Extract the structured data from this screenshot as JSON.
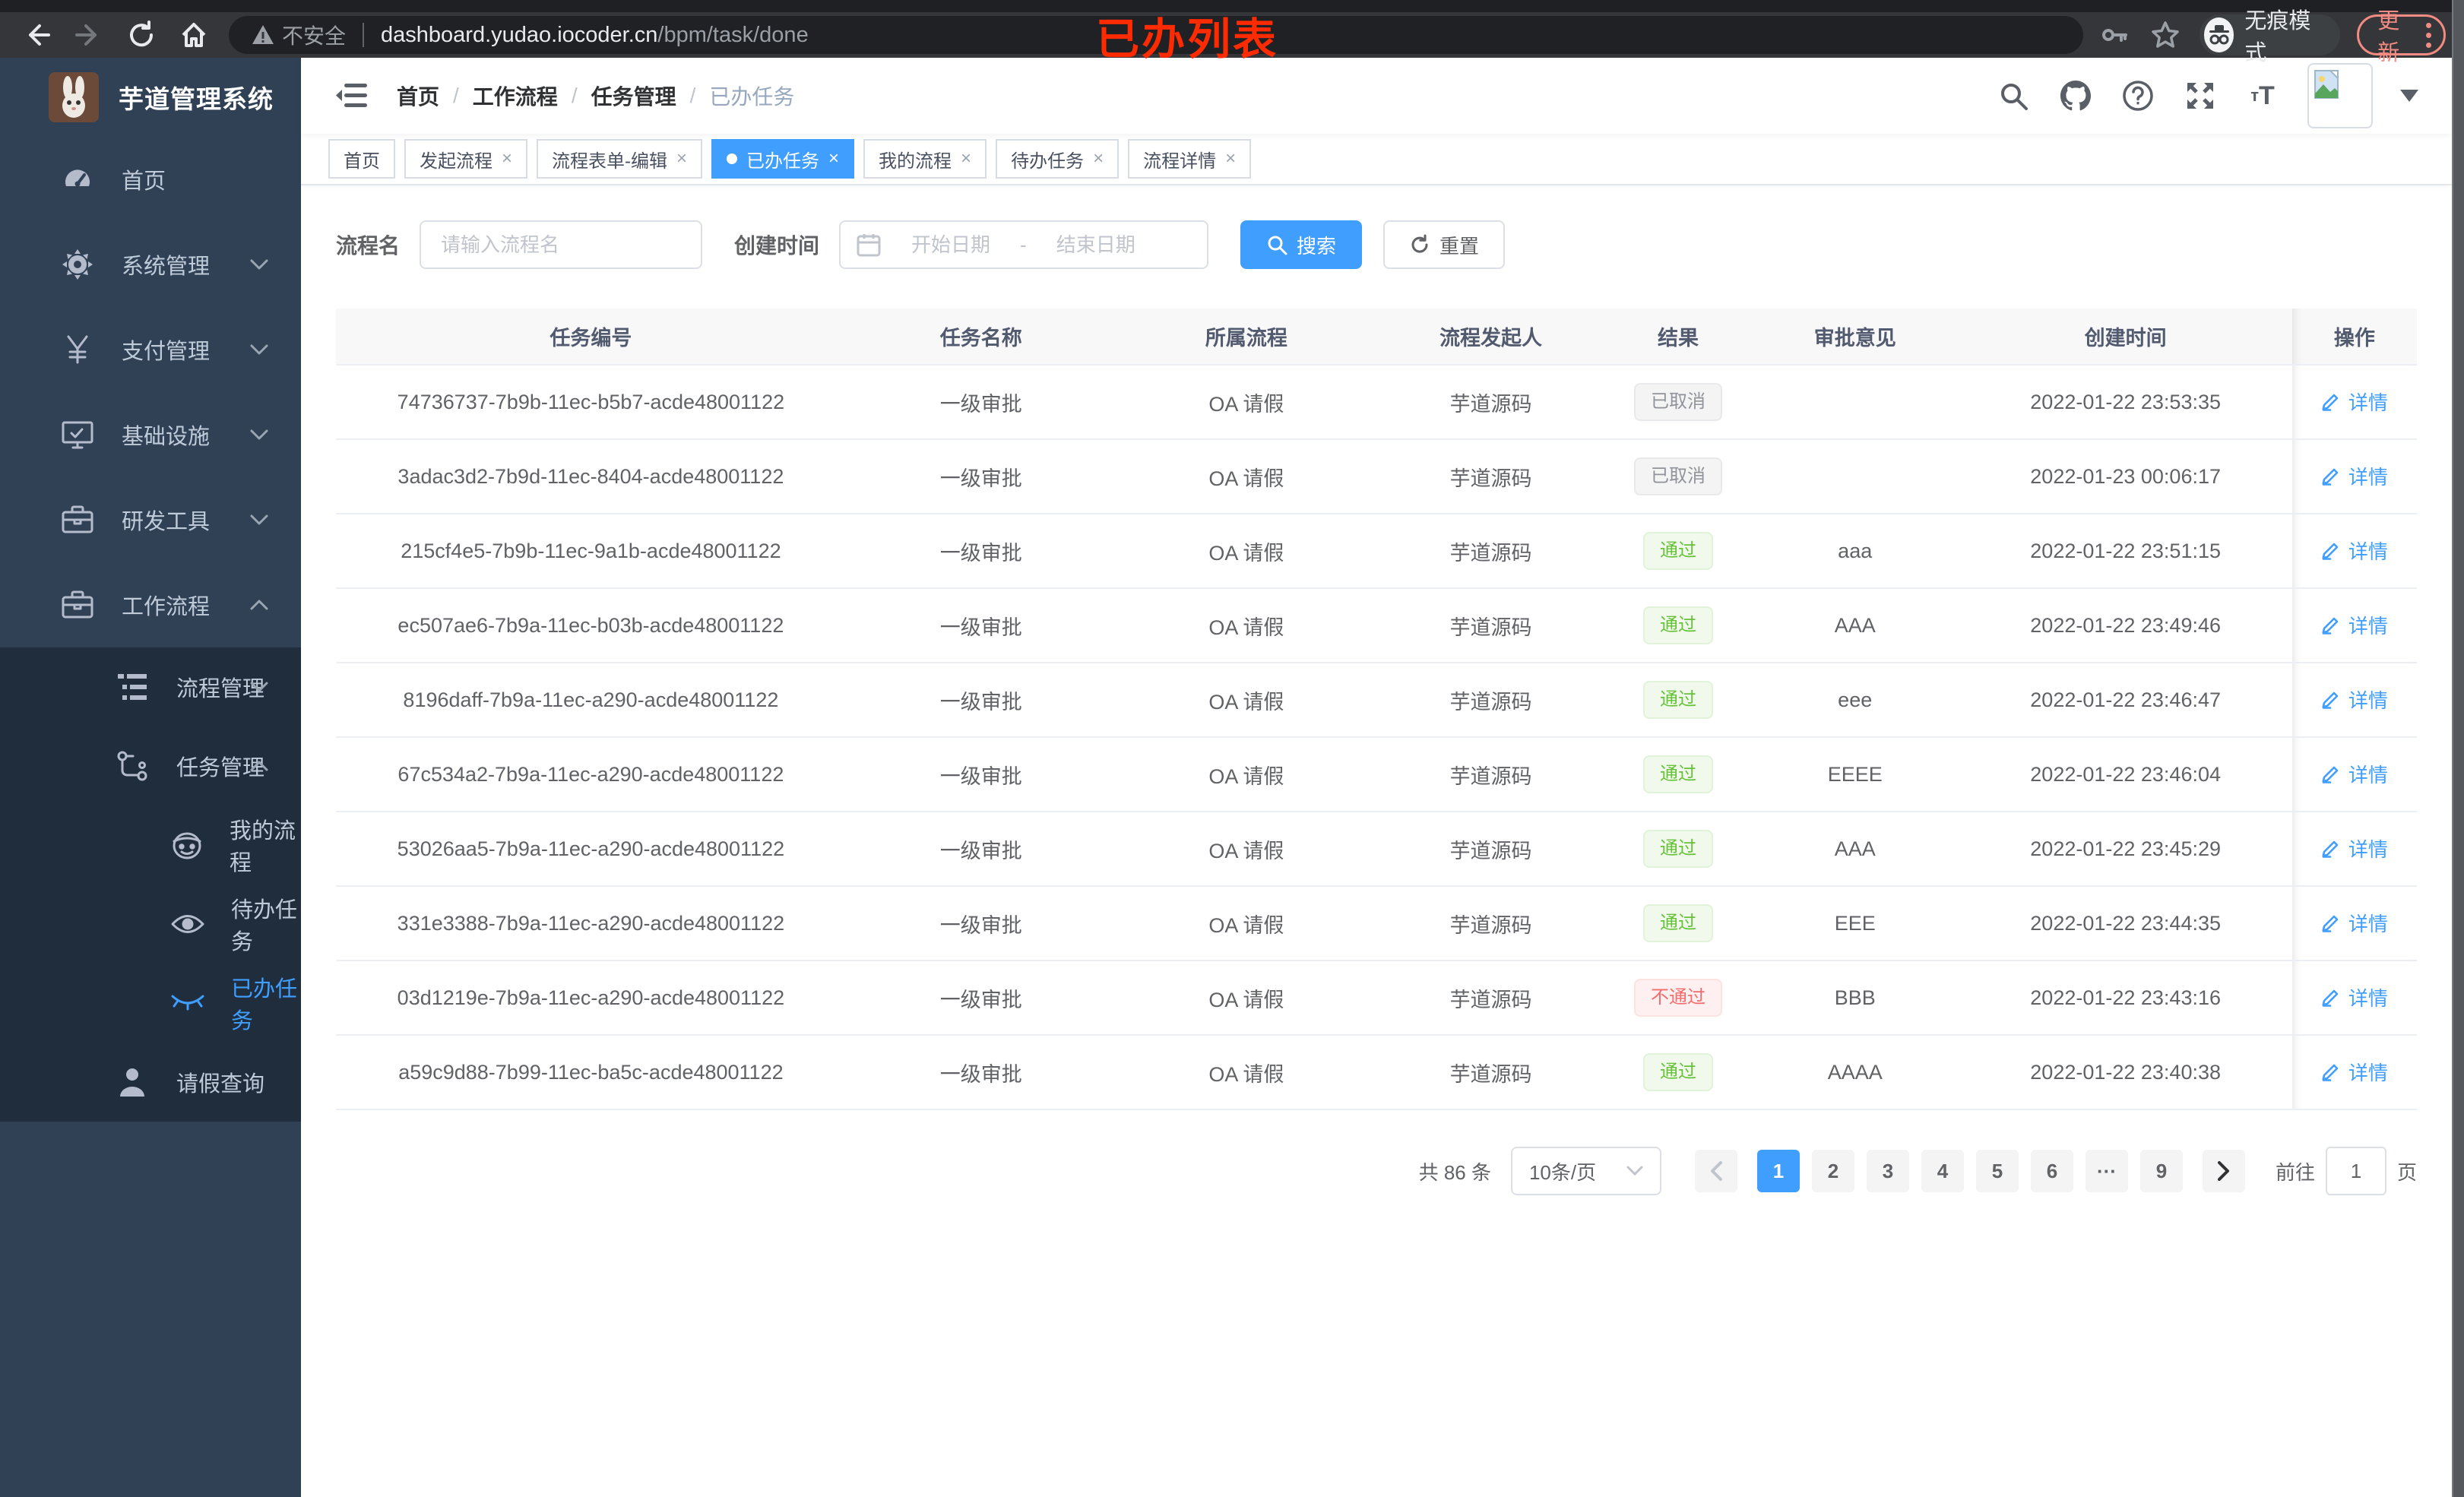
{
  "browser": {
    "insecure_label": "不安全",
    "url_host": "dashboard.yudao.iocoder.cn",
    "url_path": "/bpm/task/done",
    "incognito_label": "无痕模式",
    "update_label": "更新"
  },
  "annotation": {
    "text": "已办列表"
  },
  "colors": {
    "accent": "#409eff",
    "success": "#67c23a",
    "danger": "#f56c6c",
    "info": "#909399",
    "sidebar_bg": "#304156",
    "submenu_bg": "#1f2d3d",
    "annotation_red": "#fe2b01"
  },
  "sidebar": {
    "logo_title": "芋道管理系统",
    "menu": [
      {
        "name": "home",
        "label": "首页",
        "icon": "dashboard-icon",
        "level": 1,
        "arrow": "none"
      },
      {
        "name": "system-management",
        "label": "系统管理",
        "icon": "gear-icon",
        "level": 1,
        "arrow": "down"
      },
      {
        "name": "payment-management",
        "label": "支付管理",
        "icon": "yen-icon",
        "level": 1,
        "arrow": "down"
      },
      {
        "name": "infrastructure",
        "label": "基础设施",
        "icon": "monitor-icon",
        "level": 1,
        "arrow": "down"
      },
      {
        "name": "dev-tools",
        "label": "研发工具",
        "icon": "toolbox-icon",
        "level": 1,
        "arrow": "down"
      },
      {
        "name": "workflow",
        "label": "工作流程",
        "icon": "toolbox-icon",
        "level": 1,
        "arrow": "up"
      },
      {
        "name": "process-management",
        "label": "流程管理",
        "icon": "tree-icon",
        "level": 2,
        "arrow": "down"
      },
      {
        "name": "task-management",
        "label": "任务管理",
        "icon": "flow-icon",
        "level": 2,
        "arrow": "up"
      },
      {
        "name": "my-process",
        "label": "我的流程",
        "icon": "face-icon",
        "level": 3,
        "arrow": "none"
      },
      {
        "name": "todo-tasks",
        "label": "待办任务",
        "icon": "eye-icon",
        "level": 3,
        "arrow": "none"
      },
      {
        "name": "done-tasks",
        "label": "已办任务",
        "icon": "closed-eye-icon",
        "level": 3,
        "arrow": "none",
        "active": true
      },
      {
        "name": "leave-query",
        "label": "请假查询",
        "icon": "user-icon",
        "level": 2,
        "arrow": "none"
      }
    ]
  },
  "header": {
    "breadcrumb": [
      "首页",
      "工作流程",
      "任务管理",
      "已办任务"
    ],
    "breadcrumb_separator": "/"
  },
  "tabs": {
    "items": [
      {
        "name": "tab-home",
        "label": "首页",
        "closable": false,
        "active": false
      },
      {
        "name": "tab-start-process",
        "label": "发起流程",
        "closable": true,
        "active": false
      },
      {
        "name": "tab-form-edit",
        "label": "流程表单-编辑",
        "closable": true,
        "active": false
      },
      {
        "name": "tab-done-tasks",
        "label": "已办任务",
        "closable": true,
        "active": true
      },
      {
        "name": "tab-my-process",
        "label": "我的流程",
        "closable": true,
        "active": false
      },
      {
        "name": "tab-todo-tasks",
        "label": "待办任务",
        "closable": true,
        "active": false
      },
      {
        "name": "tab-process-detail",
        "label": "流程详情",
        "closable": true,
        "active": false
      }
    ]
  },
  "search": {
    "name_label": "流程名",
    "name_placeholder": "请输入流程名",
    "time_label": "创建时间",
    "start_placeholder": "开始日期",
    "range_separator": "-",
    "end_placeholder": "结束日期",
    "search_button": "搜索",
    "reset_button": "重置"
  },
  "table": {
    "columns": [
      "任务编号",
      "任务名称",
      "所属流程",
      "流程发起人",
      "结果",
      "审批意见",
      "创建时间",
      "操作"
    ],
    "col_widths": [
      "24.5%",
      "13%",
      "12.5%",
      "11%",
      "7%",
      "10%",
      "16%",
      "6%"
    ],
    "action_label": "详情",
    "rows": [
      {
        "id": "74736737-7b9b-11ec-b5b7-acde48001122",
        "task_name": "一级审批",
        "process": "OA 请假",
        "initiator": "芋道源码",
        "result": "已取消",
        "result_type": "info",
        "comment": "",
        "created": "2022-01-22 23:53:35"
      },
      {
        "id": "3adac3d2-7b9d-11ec-8404-acde48001122",
        "task_name": "一级审批",
        "process": "OA 请假",
        "initiator": "芋道源码",
        "result": "已取消",
        "result_type": "info",
        "comment": "",
        "created": "2022-01-23 00:06:17"
      },
      {
        "id": "215cf4e5-7b9b-11ec-9a1b-acde48001122",
        "task_name": "一级审批",
        "process": "OA 请假",
        "initiator": "芋道源码",
        "result": "通过",
        "result_type": "success",
        "comment": "aaa",
        "created": "2022-01-22 23:51:15"
      },
      {
        "id": "ec507ae6-7b9a-11ec-b03b-acde48001122",
        "task_name": "一级审批",
        "process": "OA 请假",
        "initiator": "芋道源码",
        "result": "通过",
        "result_type": "success",
        "comment": "AAA",
        "created": "2022-01-22 23:49:46"
      },
      {
        "id": "8196daff-7b9a-11ec-a290-acde48001122",
        "task_name": "一级审批",
        "process": "OA 请假",
        "initiator": "芋道源码",
        "result": "通过",
        "result_type": "success",
        "comment": "eee",
        "created": "2022-01-22 23:46:47"
      },
      {
        "id": "67c534a2-7b9a-11ec-a290-acde48001122",
        "task_name": "一级审批",
        "process": "OA 请假",
        "initiator": "芋道源码",
        "result": "通过",
        "result_type": "success",
        "comment": "EEEE",
        "created": "2022-01-22 23:46:04"
      },
      {
        "id": "53026aa5-7b9a-11ec-a290-acde48001122",
        "task_name": "一级审批",
        "process": "OA 请假",
        "initiator": "芋道源码",
        "result": "通过",
        "result_type": "success",
        "comment": "AAA",
        "created": "2022-01-22 23:45:29"
      },
      {
        "id": "331e3388-7b9a-11ec-a290-acde48001122",
        "task_name": "一级审批",
        "process": "OA 请假",
        "initiator": "芋道源码",
        "result": "通过",
        "result_type": "success",
        "comment": "EEE",
        "created": "2022-01-22 23:44:35"
      },
      {
        "id": "03d1219e-7b9a-11ec-a290-acde48001122",
        "task_name": "一级审批",
        "process": "OA 请假",
        "initiator": "芋道源码",
        "result": "不通过",
        "result_type": "danger",
        "comment": "BBB",
        "created": "2022-01-22 23:43:16"
      },
      {
        "id": "a59c9d88-7b99-11ec-ba5c-acde48001122",
        "task_name": "一级审批",
        "process": "OA 请假",
        "initiator": "芋道源码",
        "result": "通过",
        "result_type": "success",
        "comment": "AAAA",
        "created": "2022-01-22 23:40:38"
      }
    ]
  },
  "pagination": {
    "total_label": "共 86 条",
    "page_size_label": "10条/页",
    "pages": [
      {
        "label": "1",
        "active": true
      },
      {
        "label": "2"
      },
      {
        "label": "3"
      },
      {
        "label": "4"
      },
      {
        "label": "5"
      },
      {
        "label": "6"
      },
      {
        "label": "···",
        "type": "ellipsis"
      },
      {
        "label": "9"
      }
    ],
    "goto_label": "前往",
    "goto_value": "1",
    "goto_suffix": "页"
  }
}
